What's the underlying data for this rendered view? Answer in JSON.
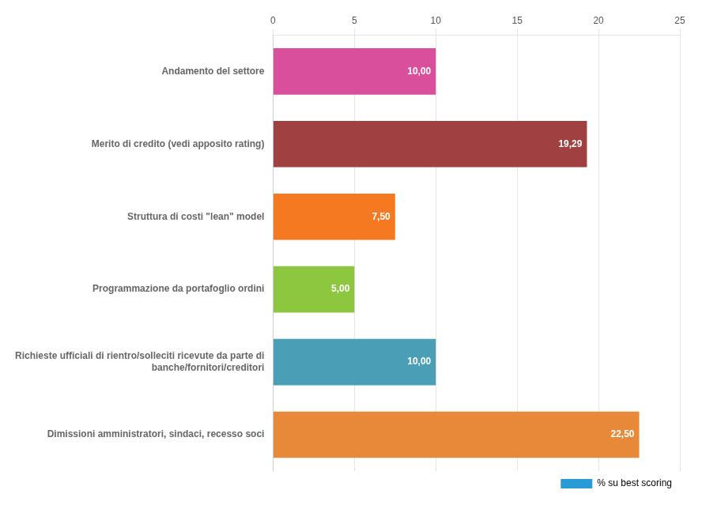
{
  "chart_data": {
    "type": "bar",
    "orientation": "horizontal",
    "categories": [
      "Andamento del settore",
      "Merito di credito (vedi apposito rating)",
      "Struttura di costi \"lean\" model",
      "Programmazione da portafoglio ordini",
      "Richieste ufficiali di rientro/solleciti ricevute da parte di\nbanche/fornitori/creditori",
      "Dimissioni amministratori, sindaci, recesso soci"
    ],
    "series": [
      {
        "name": "% su best scoring",
        "color": "#2b9bd6",
        "colors": [
          "#d94f9c",
          "#a04040",
          "#f47920",
          "#8dc63f",
          "#4a9eb5",
          "#e8893a"
        ],
        "values": [
          10.0,
          19.29,
          7.5,
          5.0,
          10.0,
          22.5
        ],
        "value_labels": [
          "10,00",
          "19,29",
          "7,50",
          "5,00",
          "10,00",
          "22,50"
        ]
      }
    ],
    "xlim": [
      0,
      25
    ],
    "xticks": [
      0,
      5,
      10,
      15,
      20,
      25
    ],
    "grid": true,
    "legend": "lower right",
    "data_labels": true
  }
}
